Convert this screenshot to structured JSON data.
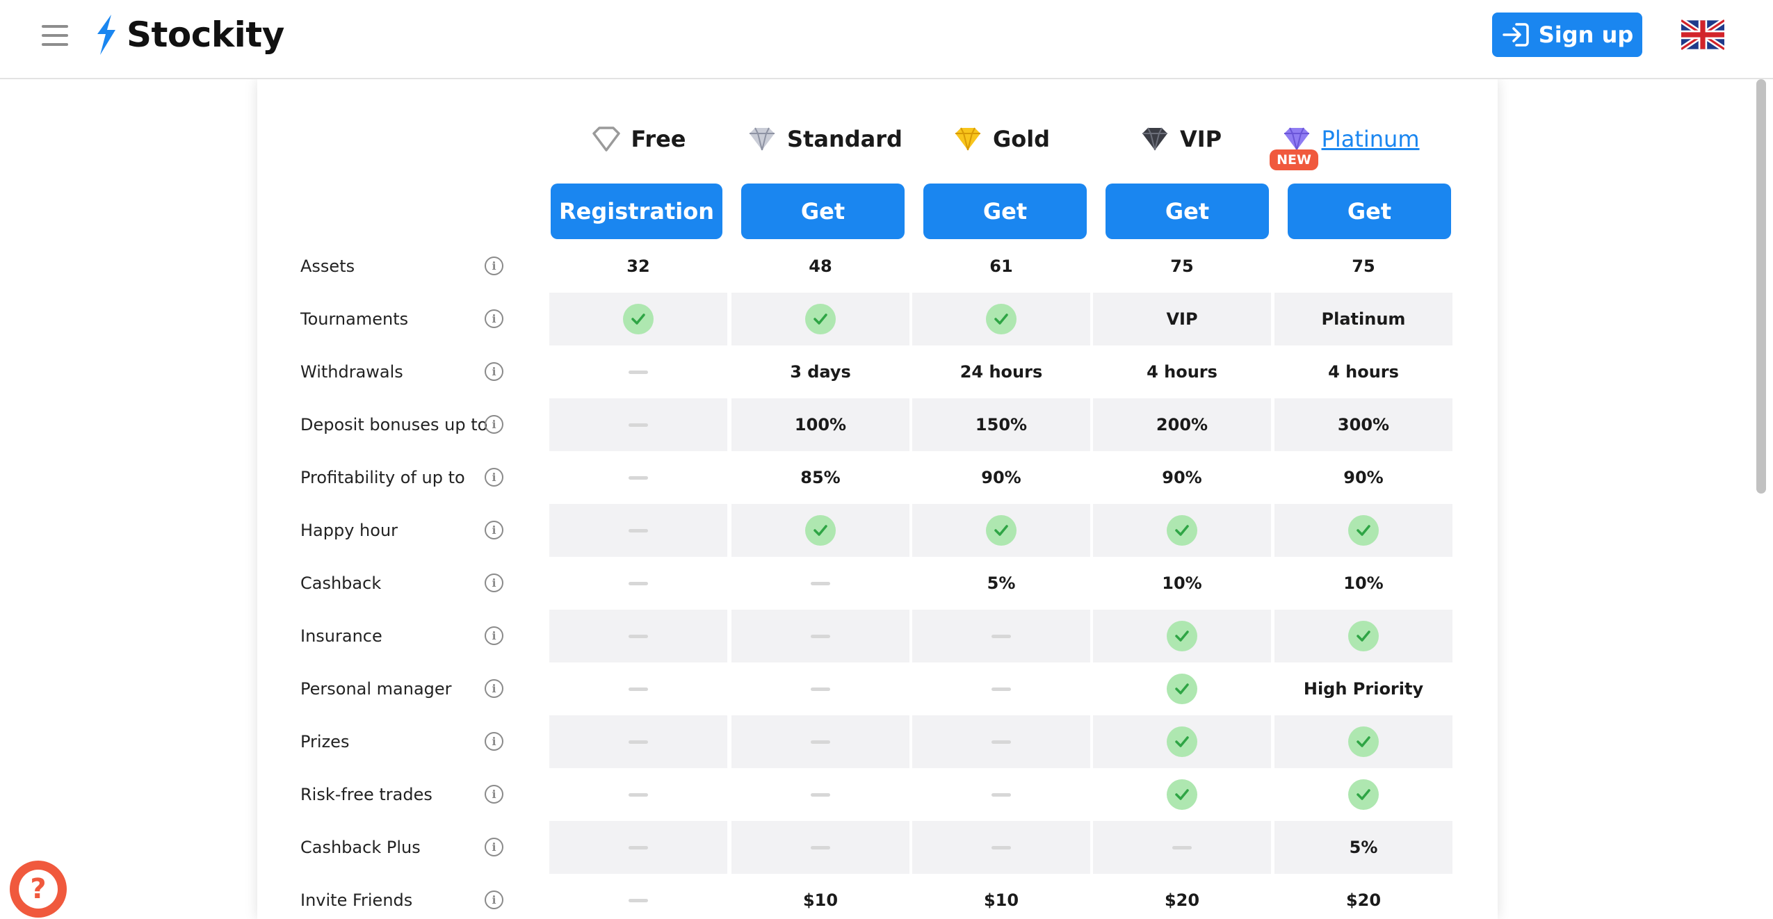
{
  "header": {
    "logo_text": "Stockity",
    "signup_label": "Sign up",
    "language": "English (UK flag)"
  },
  "plans": [
    {
      "name": "Free",
      "button": "Registration",
      "icon": "empty-diamond-icon"
    },
    {
      "name": "Standard",
      "button": "Get",
      "icon": "silver-diamond-icon"
    },
    {
      "name": "Gold",
      "button": "Get",
      "icon": "gold-diamond-icon"
    },
    {
      "name": "VIP",
      "button": "Get",
      "icon": "black-diamond-icon"
    },
    {
      "name": "Platinum",
      "button": "Get",
      "icon": "purple-diamond-icon",
      "badge": "NEW"
    }
  ],
  "rows": [
    {
      "label": "Assets",
      "values": [
        "32",
        "48",
        "61",
        "75",
        "75"
      ]
    },
    {
      "label": "Tournaments",
      "values": [
        "check",
        "check",
        "check",
        "VIP",
        "Platinum"
      ]
    },
    {
      "label": "Withdrawals",
      "values": [
        "dash",
        "3 days",
        "24 hours",
        "4 hours",
        "4 hours"
      ]
    },
    {
      "label": "Deposit bonuses up to",
      "values": [
        "dash",
        "100%",
        "150%",
        "200%",
        "300%"
      ]
    },
    {
      "label": "Profitability of up to",
      "values": [
        "dash",
        "85%",
        "90%",
        "90%",
        "90%"
      ]
    },
    {
      "label": "Happy hour",
      "values": [
        "dash",
        "check",
        "check",
        "check",
        "check"
      ]
    },
    {
      "label": "Cashback",
      "values": [
        "dash",
        "dash",
        "5%",
        "10%",
        "10%"
      ]
    },
    {
      "label": "Insurance",
      "values": [
        "dash",
        "dash",
        "dash",
        "check",
        "check"
      ]
    },
    {
      "label": "Personal manager",
      "values": [
        "dash",
        "dash",
        "dash",
        "check",
        "High Priority"
      ]
    },
    {
      "label": "Prizes",
      "values": [
        "dash",
        "dash",
        "dash",
        "check",
        "check"
      ]
    },
    {
      "label": "Risk-free trades",
      "values": [
        "dash",
        "dash",
        "dash",
        "check",
        "check"
      ]
    },
    {
      "label": "Cashback Plus",
      "values": [
        "dash",
        "dash",
        "dash",
        "dash",
        "5%"
      ]
    },
    {
      "label": "Invite Friends",
      "values": [
        "dash",
        "$10",
        "$10",
        "$20",
        "$20"
      ]
    }
  ],
  "help": {
    "symbol": "?"
  },
  "colors": {
    "accent": "#1a86f0",
    "badge": "#f0593d",
    "check_bg": "#aee7b0",
    "check": "#2fa545",
    "row_shade": "#f2f2f4"
  }
}
